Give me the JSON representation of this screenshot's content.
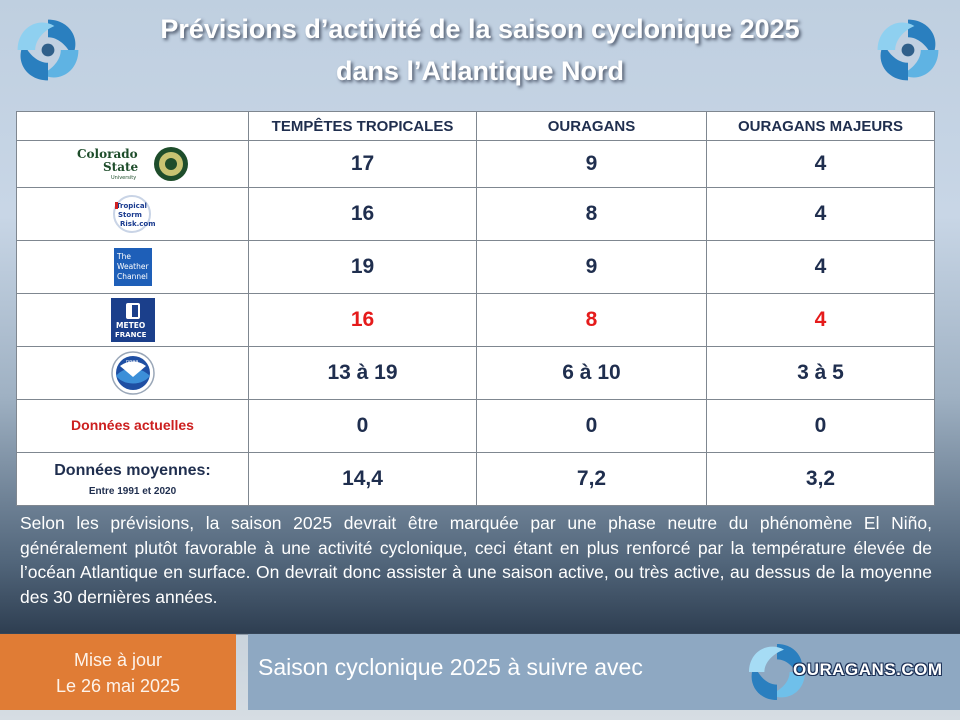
{
  "title": {
    "line1": "Prévisions d’activité de la saison cyclonique 2025",
    "line2": "dans l’Atlantique Nord"
  },
  "table": {
    "headers": [
      "",
      "TEMPÊTES TROPICALES",
      "OURAGANS",
      "OURAGANS MAJEURS"
    ],
    "rows": [
      {
        "source_icon": "colorado-state-university-logo",
        "logo_text": "Colorado State University",
        "values": [
          "17",
          "9",
          "4"
        ]
      },
      {
        "source_icon": "tropical-storm-risk-logo",
        "logo_text": "Tropical Storm Risk.com",
        "values": [
          "16",
          "8",
          "4"
        ]
      },
      {
        "source_icon": "weather-channel-logo",
        "logo_text": "The Weather Channel",
        "values": [
          "19",
          "9",
          "4"
        ]
      },
      {
        "source_icon": "meteo-france-logo",
        "logo_text": "METEO FRANCE",
        "highlight_color": "#e51b1b",
        "values": [
          "16",
          "8",
          "4"
        ]
      },
      {
        "source_icon": "noaa-logo",
        "logo_text": "NOAA",
        "values": [
          "13 à 19",
          "6 à 10",
          "3 à 5"
        ]
      },
      {
        "label": "Données actuelles",
        "values": [
          "0",
          "0",
          "0"
        ]
      },
      {
        "label": "Données moyennes:",
        "sublabel": "Entre 1991 et 2020",
        "values": [
          "14,4",
          "7,2",
          "3,2"
        ]
      }
    ]
  },
  "paragraph": "Selon les prévisions, la saison 2025 devrait être marquée par une phase neutre du phénomène El Niño, généralement plutôt favorable à une activité cyclonique, ceci étant en plus renforcé par la température élevée de l’océan Atlantique en surface. On devrait donc assister à une saison active, ou très active, au dessus de la moyenne des 30 dernières années.",
  "update": {
    "line1": "Mise à jour",
    "line2": "Le 26 mai 2025"
  },
  "footer": {
    "text": "Saison cyclonique 2025 à suivre avec",
    "brand": "OURAGANS.COM"
  },
  "colors": {
    "accent_orange": "#e07c35",
    "footer_blue": "#8ea8c2",
    "highlight_red": "#e51b1b",
    "text_navy": "#1f2e4e"
  },
  "icons": [
    "hurricane-swirl-icon"
  ]
}
